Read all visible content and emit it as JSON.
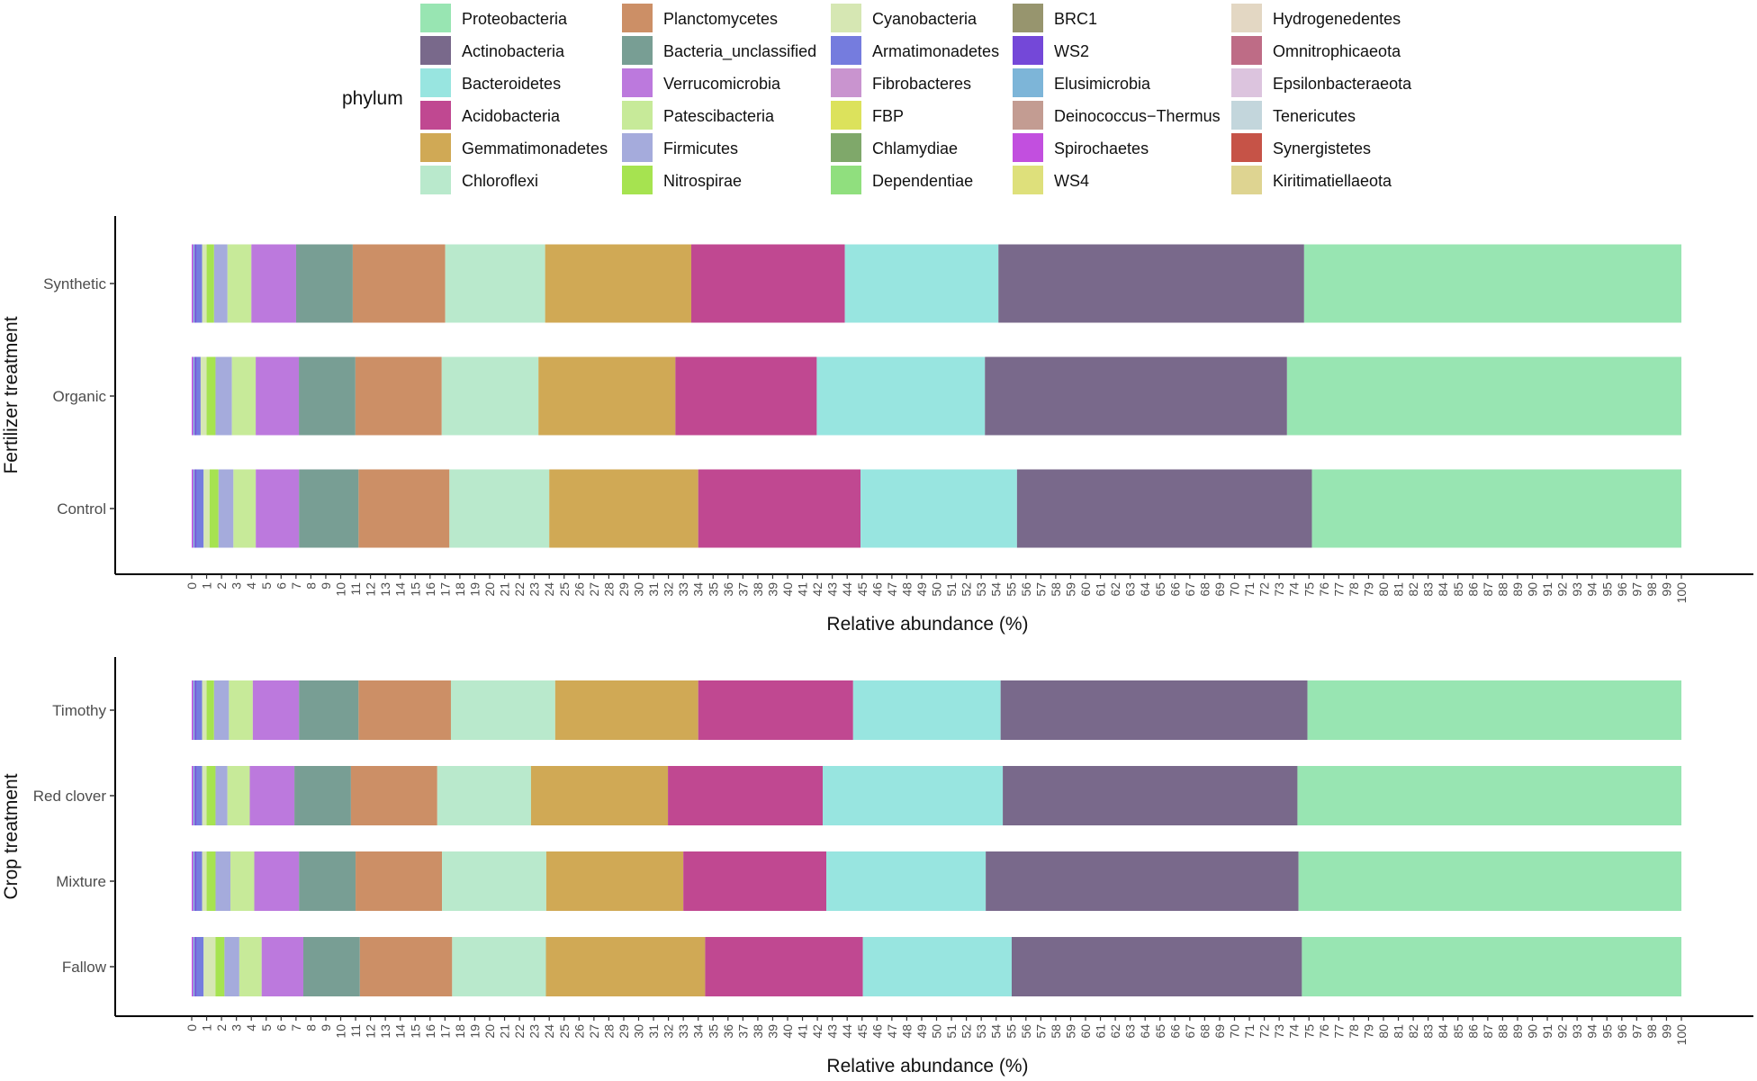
{
  "legend": {
    "title": "phylum",
    "items": [
      {
        "name": "Proteobacteria",
        "color": "#98E5B2"
      },
      {
        "name": "Actinobacteria",
        "color": "#79698B"
      },
      {
        "name": "Bacteroidetes",
        "color": "#98E5E0"
      },
      {
        "name": "Acidobacteria",
        "color": "#C04891"
      },
      {
        "name": "Gemmatimonadetes",
        "color": "#D0A955"
      },
      {
        "name": "Chloroflexi",
        "color": "#B9E9CC"
      },
      {
        "name": "Planctomycetes",
        "color": "#CC8F66"
      },
      {
        "name": "Bacteria_unclassified",
        "color": "#789E94"
      },
      {
        "name": "Verrucomicrobia",
        "color": "#BC79DD"
      },
      {
        "name": "Patescibacteria",
        "color": "#C7EA99"
      },
      {
        "name": "Firmicutes",
        "color": "#A5ABDC"
      },
      {
        "name": "Nitrospirae",
        "color": "#A6E350"
      },
      {
        "name": "Cyanobacteria",
        "color": "#D6E7B3"
      },
      {
        "name": "Armatimonadetes",
        "color": "#757CDE"
      },
      {
        "name": "Fibrobacteres",
        "color": "#C994CF"
      },
      {
        "name": "FBP",
        "color": "#DCE25C"
      },
      {
        "name": "Chlamydiae",
        "color": "#7FA86A"
      },
      {
        "name": "Dependentiae",
        "color": "#90DF7E"
      },
      {
        "name": "BRC1",
        "color": "#97956E"
      },
      {
        "name": "WS2",
        "color": "#7448D8"
      },
      {
        "name": "Elusimicrobia",
        "color": "#7DB5D8"
      },
      {
        "name": "Deinococcus−Thermus",
        "color": "#C39C92"
      },
      {
        "name": "Spirochaetes",
        "color": "#C24FDF"
      },
      {
        "name": "WS4",
        "color": "#DEE07B"
      },
      {
        "name": "Hydrogenedentes",
        "color": "#E3D7C3"
      },
      {
        "name": "Omnitrophicaeota",
        "color": "#BE6C86"
      },
      {
        "name": "Epsilonbacteraeota",
        "color": "#DCC4DE"
      },
      {
        "name": "Tenericutes",
        "color": "#C3D6DC"
      },
      {
        "name": "Synergistetes",
        "color": "#C65347"
      },
      {
        "name": "Kiritimatiellaeota",
        "color": "#DED491"
      }
    ]
  },
  "chart_data": [
    {
      "type": "bar",
      "orientation": "horizontal",
      "stacked": true,
      "ylabel": "Fertilizer treatment",
      "xlabel": "Relative abundance (%)",
      "xlim": [
        0,
        100
      ],
      "categories": [
        "Synthetic",
        "Organic",
        "Control"
      ],
      "segment_order": [
        "Spirochaetes",
        "Elusimicrobia",
        "WS2",
        "Armatimonadetes",
        "Cyanobacteria",
        "Nitrospirae",
        "Firmicutes",
        "Patescibacteria",
        "Verrucomicrobia",
        "Bacteria_unclassified",
        "Planctomycetes",
        "Chloroflexi",
        "Gemmatimonadetes",
        "Acidobacteria",
        "Bacteroidetes",
        "Actinobacteria",
        "Proteobacteria"
      ],
      "series": [
        {
          "name": "Spirochaetes",
          "values": [
            0.1,
            0.1,
            0.1
          ]
        },
        {
          "name": "Elusimicrobia",
          "values": [
            0.1,
            0.1,
            0.1
          ]
        },
        {
          "name": "WS2",
          "values": [
            0.1,
            0.1,
            0.1
          ]
        },
        {
          "name": "Armatimonadetes",
          "values": [
            0.4,
            0.3,
            0.5
          ]
        },
        {
          "name": "Cyanobacteria",
          "values": [
            0.3,
            0.4,
            0.4
          ]
        },
        {
          "name": "Nitrospirae",
          "values": [
            0.5,
            0.6,
            0.6
          ]
        },
        {
          "name": "Firmicutes",
          "values": [
            0.9,
            1.1,
            1.0
          ]
        },
        {
          "name": "Patescibacteria",
          "values": [
            1.6,
            1.6,
            1.5
          ]
        },
        {
          "name": "Verrucomicrobia",
          "values": [
            3.0,
            2.9,
            2.9
          ]
        },
        {
          "name": "Bacteria_unclassified",
          "values": [
            3.8,
            3.8,
            4.0
          ]
        },
        {
          "name": "Planctomycetes",
          "values": [
            6.2,
            5.8,
            6.1
          ]
        },
        {
          "name": "Chloroflexi",
          "values": [
            6.7,
            6.5,
            6.7
          ]
        },
        {
          "name": "Gemmatimonadetes",
          "values": [
            9.8,
            9.2,
            10.0
          ]
        },
        {
          "name": "Acidobacteria",
          "values": [
            10.3,
            9.5,
            10.9
          ]
        },
        {
          "name": "Bacteroidetes",
          "values": [
            10.3,
            11.3,
            10.5
          ]
        },
        {
          "name": "Actinobacteria",
          "values": [
            20.5,
            20.3,
            19.8
          ]
        },
        {
          "name": "Proteobacteria",
          "values": [
            25.3,
            26.5,
            24.8
          ]
        }
      ],
      "xticks": [
        0,
        1,
        2,
        3,
        4,
        5,
        6,
        7,
        8,
        9,
        10,
        11,
        12,
        13,
        14,
        15,
        16,
        17,
        18,
        19,
        20,
        21,
        22,
        23,
        24,
        25,
        26,
        27,
        28,
        29,
        30,
        31,
        32,
        33,
        34,
        35,
        36,
        37,
        38,
        39,
        40,
        41,
        42,
        43,
        44,
        45,
        46,
        47,
        48,
        49,
        50,
        51,
        52,
        53,
        54,
        55,
        56,
        57,
        58,
        59,
        60,
        61,
        62,
        63,
        64,
        65,
        66,
        67,
        68,
        69,
        70,
        71,
        72,
        73,
        74,
        75,
        76,
        77,
        78,
        79,
        80,
        81,
        82,
        83,
        84,
        85,
        86,
        87,
        88,
        89,
        90,
        91,
        92,
        93,
        94,
        95,
        96,
        97,
        98,
        99,
        100
      ]
    },
    {
      "type": "bar",
      "orientation": "horizontal",
      "stacked": true,
      "ylabel": "Crop treatment",
      "xlabel": "Relative abundance (%)",
      "xlim": [
        0,
        100
      ],
      "categories": [
        "Timothy",
        "Red clover",
        "Mixture",
        "Fallow"
      ],
      "segment_order": [
        "Spirochaetes",
        "Elusimicrobia",
        "WS2",
        "Armatimonadetes",
        "Cyanobacteria",
        "Nitrospirae",
        "Firmicutes",
        "Patescibacteria",
        "Verrucomicrobia",
        "Bacteria_unclassified",
        "Planctomycetes",
        "Chloroflexi",
        "Gemmatimonadetes",
        "Acidobacteria",
        "Bacteroidetes",
        "Actinobacteria",
        "Proteobacteria"
      ],
      "series": [
        {
          "name": "Spirochaetes",
          "values": [
            0.1,
            0.1,
            0.1,
            0.1
          ]
        },
        {
          "name": "Elusimicrobia",
          "values": [
            0.1,
            0.1,
            0.1,
            0.1
          ]
        },
        {
          "name": "WS2",
          "values": [
            0.1,
            0.1,
            0.1,
            0.1
          ]
        },
        {
          "name": "Armatimonadetes",
          "values": [
            0.4,
            0.4,
            0.4,
            0.5
          ]
        },
        {
          "name": "Cyanobacteria",
          "values": [
            0.3,
            0.3,
            0.3,
            0.8
          ]
        },
        {
          "name": "Nitrospirae",
          "values": [
            0.5,
            0.6,
            0.6,
            0.6
          ]
        },
        {
          "name": "Firmicutes",
          "values": [
            1.0,
            0.8,
            1.0,
            1.0
          ]
        },
        {
          "name": "Patescibacteria",
          "values": [
            1.6,
            1.5,
            1.6,
            1.5
          ]
        },
        {
          "name": "Verrucomicrobia",
          "values": [
            3.1,
            3.0,
            3.0,
            2.8
          ]
        },
        {
          "name": "Bacteria_unclassified",
          "values": [
            4.0,
            3.8,
            3.8,
            3.8
          ]
        },
        {
          "name": "Planctomycetes",
          "values": [
            6.2,
            5.8,
            5.8,
            6.2
          ]
        },
        {
          "name": "Chloroflexi",
          "values": [
            7.0,
            6.3,
            7.0,
            6.3
          ]
        },
        {
          "name": "Gemmatimonadetes",
          "values": [
            9.6,
            9.2,
            9.2,
            10.7
          ]
        },
        {
          "name": "Acidobacteria",
          "values": [
            10.4,
            10.4,
            9.6,
            10.6
          ]
        },
        {
          "name": "Bacteroidetes",
          "values": [
            9.9,
            12.1,
            10.7,
            10.0
          ]
        },
        {
          "name": "Actinobacteria",
          "values": [
            20.6,
            19.8,
            21.0,
            19.5
          ]
        },
        {
          "name": "Proteobacteria",
          "values": [
            25.1,
            25.8,
            25.7,
            25.5
          ]
        }
      ],
      "xticks": [
        0,
        1,
        2,
        3,
        4,
        5,
        6,
        7,
        8,
        9,
        10,
        11,
        12,
        13,
        14,
        15,
        16,
        17,
        18,
        19,
        20,
        21,
        22,
        23,
        24,
        25,
        26,
        27,
        28,
        29,
        30,
        31,
        32,
        33,
        34,
        35,
        36,
        37,
        38,
        39,
        40,
        41,
        42,
        43,
        44,
        45,
        46,
        47,
        48,
        49,
        50,
        51,
        52,
        53,
        54,
        55,
        56,
        57,
        58,
        59,
        60,
        61,
        62,
        63,
        64,
        65,
        66,
        67,
        68,
        69,
        70,
        71,
        72,
        73,
        74,
        75,
        76,
        77,
        78,
        79,
        80,
        81,
        82,
        83,
        84,
        85,
        86,
        87,
        88,
        89,
        90,
        91,
        92,
        93,
        94,
        95,
        96,
        97,
        98,
        99,
        100
      ]
    }
  ]
}
